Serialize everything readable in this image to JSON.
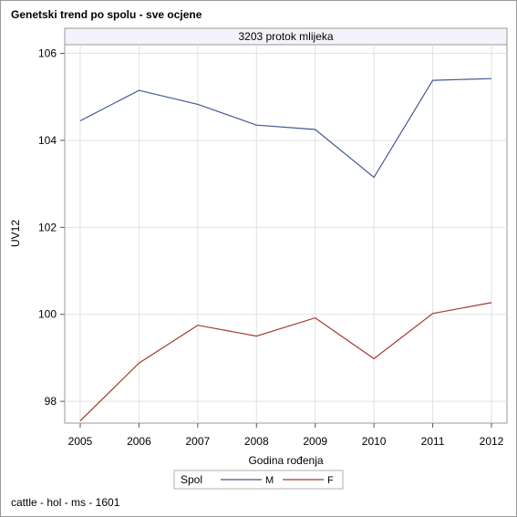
{
  "title": "Genetski trend po spolu - sve ocjene",
  "footnote": "cattle - hol - ms - 1601",
  "chart_data": {
    "type": "line",
    "panel_title": "3203 protok mlijeka",
    "xlabel": "Godina rođenja",
    "ylabel": "UV12",
    "x": [
      2005,
      2006,
      2007,
      2008,
      2009,
      2010,
      2011,
      2012
    ],
    "xlim": [
      2005,
      2012
    ],
    "ylim": [
      97.5,
      106.2
    ],
    "yticks": [
      98,
      100,
      102,
      104,
      106
    ],
    "grid": true,
    "legend": {
      "title": "Spol",
      "position": "bottom-center"
    },
    "series": [
      {
        "name": "M",
        "color": "#445694",
        "values": [
          104.45,
          105.15,
          104.83,
          104.35,
          104.25,
          103.15,
          105.38,
          105.42
        ]
      },
      {
        "name": "F",
        "color": "#a23a2e",
        "values": [
          97.55,
          98.88,
          99.75,
          99.5,
          99.92,
          98.98,
          100.02,
          100.27
        ]
      }
    ]
  }
}
